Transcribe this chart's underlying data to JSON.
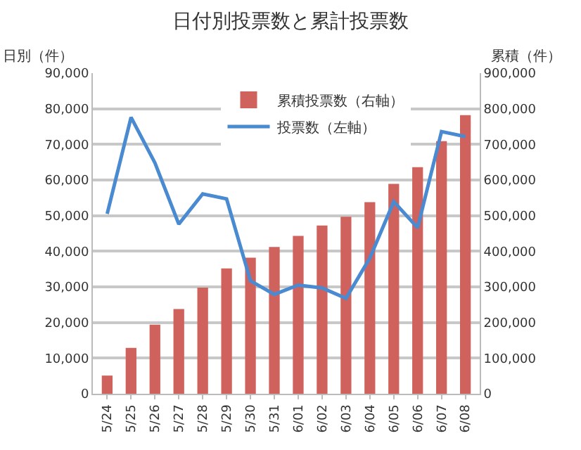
{
  "chart_data": {
    "type": "bar",
    "title": "日付別投票数と累計投票数",
    "ylabel": "日別（件）",
    "y2label": "累積（件）",
    "categories": [
      "5/24",
      "5/25",
      "5/26",
      "5/27",
      "5/28",
      "5/29",
      "5/30",
      "5/31",
      "6/01",
      "6/02",
      "6/03",
      "6/04",
      "6/05",
      "6/06",
      "6/07",
      "6/08"
    ],
    "series": [
      {
        "name": "累積投票数（右軸）",
        "axis": "y2",
        "color": "#d0625e",
        "values": [
          51000,
          129000,
          194000,
          238000,
          298000,
          352000,
          382000,
          412000,
          443000,
          472000,
          497000,
          538000,
          589000,
          636000,
          709000,
          782000
        ]
      },
      {
        "name": "投票数（左軸）",
        "type": "line",
        "color": "#4a8ad0",
        "values": [
          50500,
          77600,
          64800,
          47600,
          56100,
          54700,
          31700,
          27900,
          30500,
          29700,
          26800,
          38100,
          53900,
          46600,
          73600,
          72200
        ]
      }
    ],
    "ylim": [
      0,
      90000
    ],
    "yticks": [
      {
        "value": 0,
        "label": "0"
      },
      {
        "value": 10000,
        "label": "10,000"
      },
      {
        "value": 20000,
        "label": "20,000"
      },
      {
        "value": 30000,
        "label": "30,000"
      },
      {
        "value": 40000,
        "label": "40,000"
      },
      {
        "value": 50000,
        "label": "50,000"
      },
      {
        "value": 60000,
        "label": "60,000"
      },
      {
        "value": 70000,
        "label": "70,000"
      },
      {
        "value": 80000,
        "label": "80,000"
      },
      {
        "value": 90000,
        "label": "90,000"
      }
    ],
    "y2lim": [
      0,
      900000
    ],
    "y2ticks": [
      {
        "value": 0,
        "label": "0"
      },
      {
        "value": 100000,
        "label": "100,000"
      },
      {
        "value": 200000,
        "label": "200,000"
      },
      {
        "value": 300000,
        "label": "300,000"
      },
      {
        "value": 400000,
        "label": "400,000"
      },
      {
        "value": 500000,
        "label": "500,000"
      },
      {
        "value": 600000,
        "label": "600,000"
      },
      {
        "value": 700000,
        "label": "700,000"
      },
      {
        "value": 800000,
        "label": "800,000"
      },
      {
        "value": 900000,
        "label": "900,000"
      }
    ],
    "grid": "y",
    "legend": "top right",
    "marker": "none",
    "line_style": "solid"
  }
}
